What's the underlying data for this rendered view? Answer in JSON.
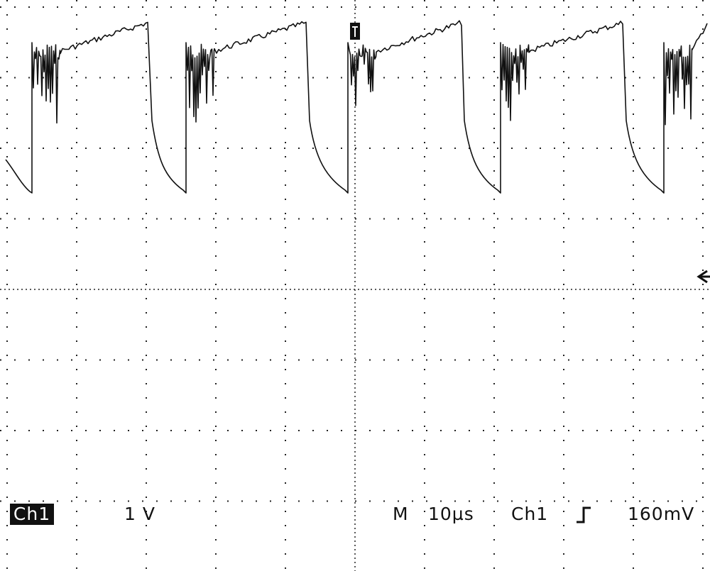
{
  "status_bar": {
    "channel": "Ch1",
    "scale": "1 V",
    "mode": "M",
    "timebase": "10µs",
    "trigger_source": "Ch1",
    "trigger_level": "160mV"
  }
}
